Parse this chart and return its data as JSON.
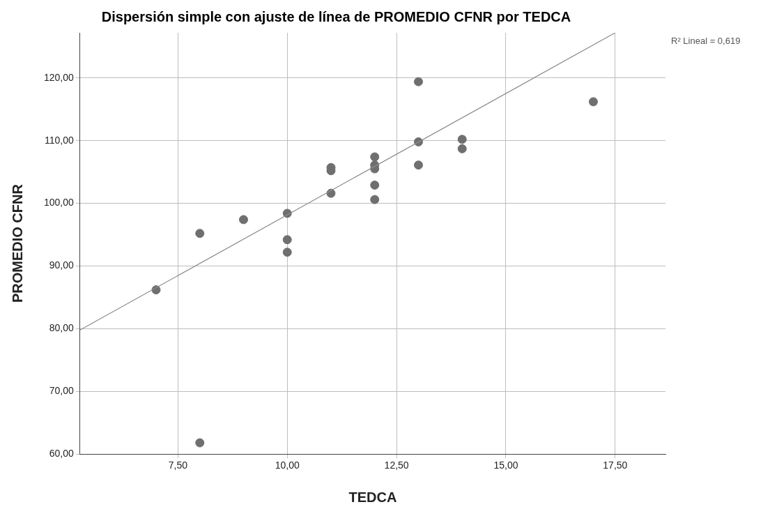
{
  "chart_data": {
    "type": "scatter",
    "title": "Dispersión simple con ajuste de línea de PROMEDIO CFNR por TEDCA",
    "xlabel": "TEDCA",
    "ylabel": "PROMEDIO CFNR",
    "annotations": [
      "R² Lineal = 0,619"
    ],
    "series": [
      {
        "type": "scatter",
        "color": "#6f6f6f",
        "x": [
          7,
          8,
          8,
          9,
          10,
          10,
          10,
          11,
          11,
          11,
          12,
          12,
          12,
          12,
          12,
          13,
          13,
          13,
          14,
          14,
          17
        ],
        "values": [
          86.2,
          95.2,
          61.8,
          97.4,
          98.4,
          94.2,
          92.2,
          105.7,
          105.2,
          101.6,
          107.4,
          106.1,
          105.5,
          102.9,
          100.6,
          119.4,
          109.8,
          106.1,
          110.2,
          108.7,
          116.2
        ]
      },
      {
        "type": "line",
        "color": "#8c8c8c",
        "marker": "none",
        "x": [
          5.26,
          17.5
        ],
        "values": [
          79.8,
          127.2
        ]
      }
    ],
    "marker": "circle",
    "grid": true,
    "legend": false,
    "xlim": [
      5.26,
      18.65
    ],
    "ylim": [
      60,
      127.2
    ],
    "xticks": [
      {
        "value": 7.5,
        "label": "7,50"
      },
      {
        "value": 10,
        "label": "10,00"
      },
      {
        "value": 12.5,
        "label": "12,50"
      },
      {
        "value": 15,
        "label": "15,00"
      },
      {
        "value": 17.5,
        "label": "17,50"
      }
    ],
    "yticks": [
      {
        "value": 60,
        "label": "60,00"
      },
      {
        "value": 70,
        "label": "70,00"
      },
      {
        "value": 80,
        "label": "80,00"
      },
      {
        "value": 90,
        "label": "90,00"
      },
      {
        "value": 100,
        "label": "100,00"
      },
      {
        "value": 110,
        "label": "110,00"
      },
      {
        "value": 120,
        "label": "120,00"
      }
    ]
  }
}
